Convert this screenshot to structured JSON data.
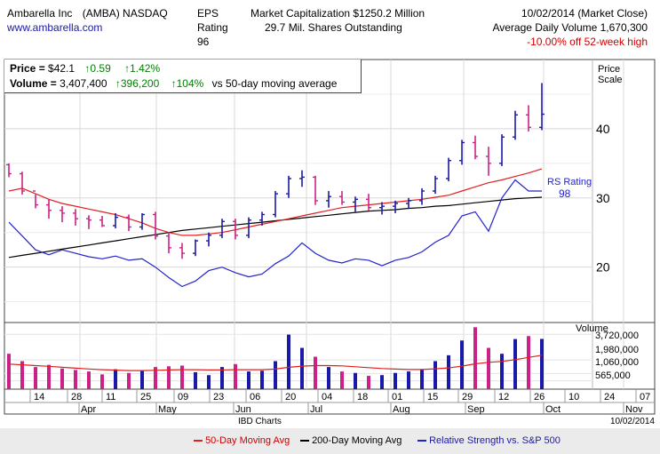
{
  "header": {
    "company": "Ambarella Inc",
    "ticker": "(AMBA) NASDAQ",
    "website": "www.ambarella.com",
    "eps_label": "EPS",
    "rating_label": "Rating",
    "rating_value": "96",
    "market_cap": "Market Capitalization $1250.2 Million",
    "shares": "29.7 Mil. Shares Outstanding",
    "date": "10/02/2014 (Market Close)",
    "avg_volume": "Average Daily Volume 1,670,300",
    "off_high": "-10.00% off 52-week high"
  },
  "infobox": {
    "price_label": "Price = ",
    "price": "$42.1",
    "price_change": "0.59",
    "price_pct": "1.42%",
    "volume_label": "Volume = ",
    "volume": "3,407,400",
    "volume_change": "396,200",
    "volume_pct": "104%",
    "volume_note": "vs 50-day moving average"
  },
  "footer": {
    "source": "IBD Charts",
    "date": "10/02/2014"
  },
  "legend": {
    "ma50": "50-Day Moving Avg",
    "ma200": "200-Day Moving Avg",
    "rs": "Relative Strength vs. S&P 500"
  },
  "colors": {
    "up": "#1a1aa8",
    "down": "#cc2288",
    "ma50": "#e02020",
    "ma200": "#000000",
    "rs": "#2222cc",
    "volume_up": "#1a1aa8",
    "volume_down": "#cc2288",
    "grid": "#d8d8d8"
  },
  "chart_data": {
    "type": "bar",
    "price_axis_title": "Price Scale",
    "price_ticks": [
      20,
      30,
      40
    ],
    "price_range": [
      12,
      50
    ],
    "volume_axis_title": "Volume",
    "volume_ticks": [
      "3,720,000",
      "1,980,000",
      "1,060,000",
      "565,000"
    ],
    "rs_label": "RS Rating",
    "rs_value": "98",
    "x_day_ticks": [
      "14",
      "28",
      "11",
      "25",
      "09",
      "23",
      "06",
      "20",
      "04",
      "18",
      "01",
      "15",
      "29",
      "12",
      "26",
      "10",
      "24",
      "07"
    ],
    "x_month_ticks": [
      "Apr",
      "May",
      "Jun",
      "Jul",
      "Aug",
      "Sep",
      "Oct",
      "Nov"
    ],
    "weekly_ohlc": [
      [
        34.8,
        35.0,
        33.0,
        33.5
      ],
      [
        33.5,
        33.8,
        30.5,
        31.0
      ],
      [
        31.0,
        30.5,
        28.5,
        29.0
      ],
      [
        29.0,
        29.8,
        27.0,
        28.2
      ],
      [
        28.2,
        28.8,
        26.5,
        27.8
      ],
      [
        27.8,
        28.4,
        26.0,
        27.0
      ],
      [
        27.0,
        27.5,
        25.5,
        26.8
      ],
      [
        26.8,
        27.4,
        25.8,
        26.0
      ],
      [
        26.0,
        27.8,
        25.6,
        27.2
      ],
      [
        27.2,
        27.6,
        25.2,
        25.8
      ],
      [
        25.8,
        27.8,
        25.4,
        27.6
      ],
      [
        27.6,
        28.0,
        24.0,
        24.5
      ],
      [
        24.5,
        25.0,
        22.0,
        22.8
      ],
      [
        22.8,
        23.5,
        21.2,
        22.0
      ],
      [
        22.0,
        24.0,
        21.6,
        23.8
      ],
      [
        23.8,
        25.0,
        23.0,
        24.6
      ],
      [
        24.6,
        27.0,
        24.2,
        26.6
      ],
      [
        26.6,
        27.0,
        24.0,
        24.6
      ],
      [
        24.6,
        27.2,
        24.2,
        26.8
      ],
      [
        26.8,
        28.0,
        26.0,
        27.6
      ],
      [
        27.6,
        31.0,
        27.2,
        30.6
      ],
      [
        30.6,
        33.2,
        30.0,
        32.8
      ],
      [
        32.8,
        34.0,
        31.6,
        33.0
      ],
      [
        33.0,
        33.2,
        29.0,
        29.6
      ],
      [
        29.6,
        31.0,
        28.6,
        30.2
      ],
      [
        30.2,
        31.0,
        29.0,
        29.4
      ],
      [
        29.4,
        30.2,
        28.0,
        29.8
      ],
      [
        29.8,
        30.6,
        28.2,
        28.6
      ],
      [
        28.6,
        29.4,
        27.6,
        28.8
      ],
      [
        28.8,
        29.6,
        27.8,
        29.2
      ],
      [
        29.2,
        30.0,
        28.4,
        29.6
      ],
      [
        29.6,
        31.4,
        29.0,
        31.0
      ],
      [
        31.0,
        33.2,
        30.6,
        32.8
      ],
      [
        32.8,
        35.8,
        32.4,
        35.4
      ],
      [
        35.4,
        38.4,
        34.8,
        38.0
      ],
      [
        38.0,
        39.0,
        35.6,
        36.0
      ],
      [
        36.0,
        37.4,
        33.2,
        35.0
      ],
      [
        35.0,
        39.2,
        34.6,
        38.8
      ],
      [
        38.8,
        42.6,
        38.4,
        42.0
      ],
      [
        42.0,
        43.4,
        39.6,
        40.2
      ],
      [
        40.2,
        46.6,
        39.8,
        42.1
      ]
    ],
    "ma50": [
      31.0,
      31.4,
      30.6,
      29.8,
      29.2,
      28.8,
      28.4,
      28.0,
      27.6,
      27.0,
      26.4,
      25.6,
      25.0,
      24.6,
      24.6,
      24.8,
      25.0,
      25.4,
      25.8,
      26.2,
      26.6,
      27.0,
      27.4,
      27.8,
      28.2,
      28.6,
      28.8,
      29.0,
      29.2,
      29.4,
      29.6,
      29.8,
      30.1,
      30.4,
      31.0,
      31.6,
      32.2,
      32.6,
      33.1,
      33.6,
      34.2
    ],
    "ma200": [
      21.4,
      21.7,
      22.0,
      22.3,
      22.6,
      22.9,
      23.2,
      23.5,
      23.8,
      24.1,
      24.4,
      24.7,
      25.0,
      25.3,
      25.5,
      25.7,
      25.9,
      26.1,
      26.3,
      26.5,
      26.7,
      26.9,
      27.1,
      27.3,
      27.5,
      27.7,
      27.9,
      28.1,
      28.2,
      28.3,
      28.5,
      28.6,
      28.8,
      28.9,
      29.1,
      29.3,
      29.5,
      29.7,
      29.9,
      30.0,
      30.1
    ],
    "rs_line": [
      26.5,
      24.5,
      22.5,
      21.8,
      22.5,
      22.0,
      21.5,
      21.2,
      21.6,
      21.0,
      21.2,
      20.0,
      18.5,
      17.2,
      18.0,
      19.5,
      20.0,
      19.2,
      18.6,
      19.0,
      20.5,
      21.6,
      23.5,
      22.0,
      21.0,
      20.6,
      21.2,
      21.0,
      20.2,
      21.0,
      21.4,
      22.2,
      23.6,
      24.6,
      27.4,
      28.0,
      25.2,
      30.0,
      32.6,
      31.0,
      31.0
    ],
    "volume": [
      2400000,
      1900000,
      1500000,
      1650000,
      1400000,
      1300000,
      1200000,
      1000000,
      1350000,
      1100000,
      1250000,
      1500000,
      1550000,
      1600000,
      1150000,
      950000,
      1500000,
      1700000,
      1200000,
      1250000,
      1900000,
      3700000,
      2800000,
      2200000,
      1500000,
      1200000,
      1100000,
      900000,
      950000,
      1100000,
      1200000,
      1300000,
      1900000,
      2300000,
      3300000,
      4200000,
      2800000,
      2400000,
      3400000,
      3600000,
      3407400
    ],
    "volume_ma": [
      1700000,
      1650000,
      1600000,
      1550000,
      1480000,
      1420000,
      1370000,
      1320000,
      1290000,
      1260000,
      1260000,
      1280000,
      1300000,
      1320000,
      1320000,
      1300000,
      1300000,
      1320000,
      1320000,
      1320000,
      1360000,
      1480000,
      1560000,
      1600000,
      1600000,
      1580000,
      1520000,
      1460000,
      1400000,
      1360000,
      1330000,
      1330000,
      1380000,
      1440000,
      1560000,
      1720000,
      1820000,
      1880000,
      2000000,
      2150000,
      2300000
    ]
  }
}
